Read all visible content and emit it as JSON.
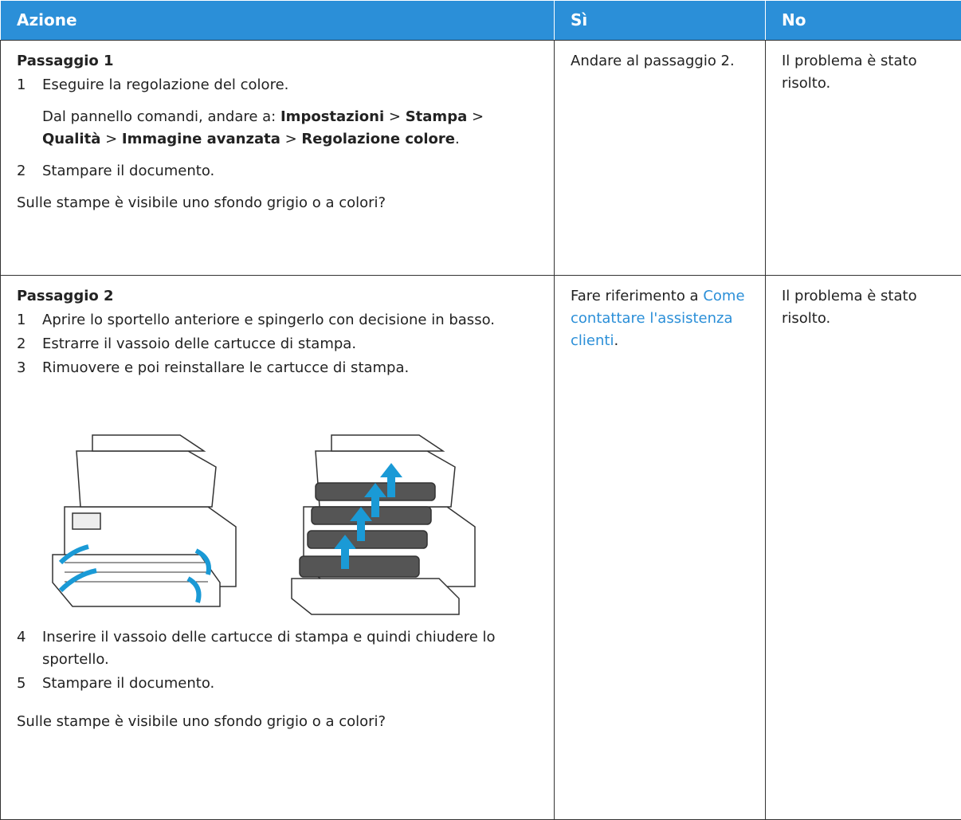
{
  "table": {
    "header": [
      "Azione",
      "Sì",
      "No"
    ],
    "rows": [
      {
        "step": "Passaggio 1",
        "items_before": [
          {
            "number": "1",
            "text": "Eseguire la regolazione del colore."
          }
        ],
        "note": {
          "prefix": "Dal pannello comandi, andare a:",
          "path": [
            "Impostazioni",
            "Stampa",
            "Qualità",
            "Immagine avanzata",
            "Regolazione colore"
          ],
          "separator": ">",
          "suffix": "."
        },
        "items_after": [
          {
            "number": "2",
            "text": "Stampare il documento."
          }
        ],
        "question": "Sulle stampe è visibile uno sfondo grigio o a colori?",
        "yes": {
          "text": "Andare al passaggio 2."
        },
        "no": "Il problema è stato risolto."
      },
      {
        "step": "Passaggio 2",
        "items_before": [
          {
            "number": "1",
            "text": "Aprire lo sportello anteriore e spingerlo con decisione in basso."
          },
          {
            "number": "2",
            "text": "Estrarre il vassoio delle cartucce di stampa."
          },
          {
            "number": "3",
            "text": "Rimuovere e poi reinstallare le cartucce di stampa."
          }
        ],
        "items_after": [
          {
            "number": "4",
            "text": "Inserire il vassoio delle cartucce di stampa e quindi chiudere lo sportello."
          },
          {
            "number": "5",
            "text": "Stampare il documento."
          }
        ],
        "question": "Sulle stampe è visibile uno sfondo grigio o a colori?",
        "yes": {
          "prefix": "Fare riferimento a",
          "link": "Come contattare l'assistenza clienti",
          "suffix": "."
        },
        "no": "Il problema è stato risolto."
      }
    ]
  }
}
